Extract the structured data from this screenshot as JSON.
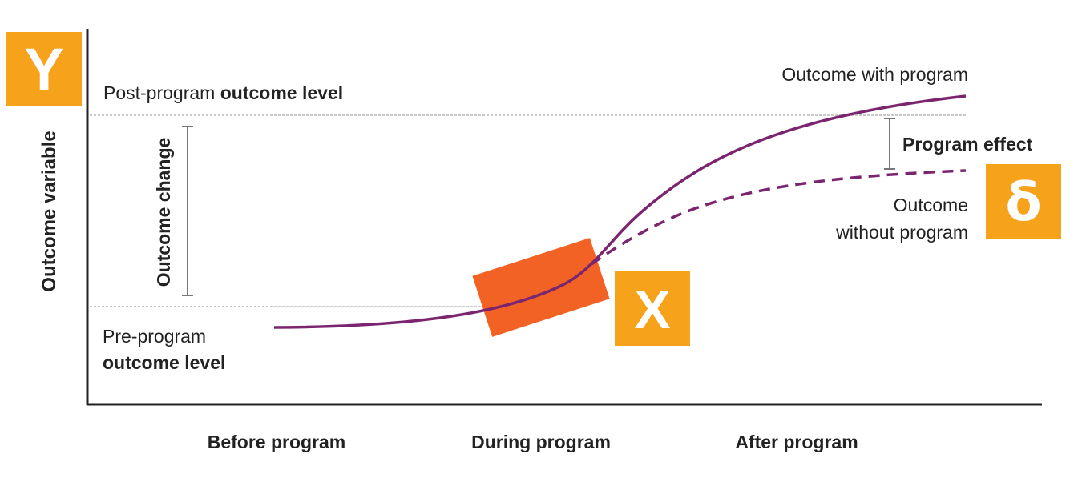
{
  "y_badge": "Y",
  "x_badge": "X",
  "delta_badge": "δ",
  "y_axis_label": "Outcome variable",
  "post_level": {
    "prefix": "Post-program ",
    "bold": "outcome level"
  },
  "pre_level": {
    "line1": "Pre-program",
    "line2": "outcome level"
  },
  "outcome_change_label": "Outcome change",
  "program_effect_label": "Program effect",
  "with_program_label": "Outcome with program",
  "without_program_label": {
    "line1": "Outcome",
    "line2": "without program"
  },
  "phases": [
    "Before program",
    "During program",
    "After program"
  ],
  "colors": {
    "badge": "#F7A21B",
    "program_block": "#F26225",
    "curve": "#7B2570",
    "axis": "#222222",
    "bracket": "#777777",
    "guide": "#c8c8c8"
  }
}
